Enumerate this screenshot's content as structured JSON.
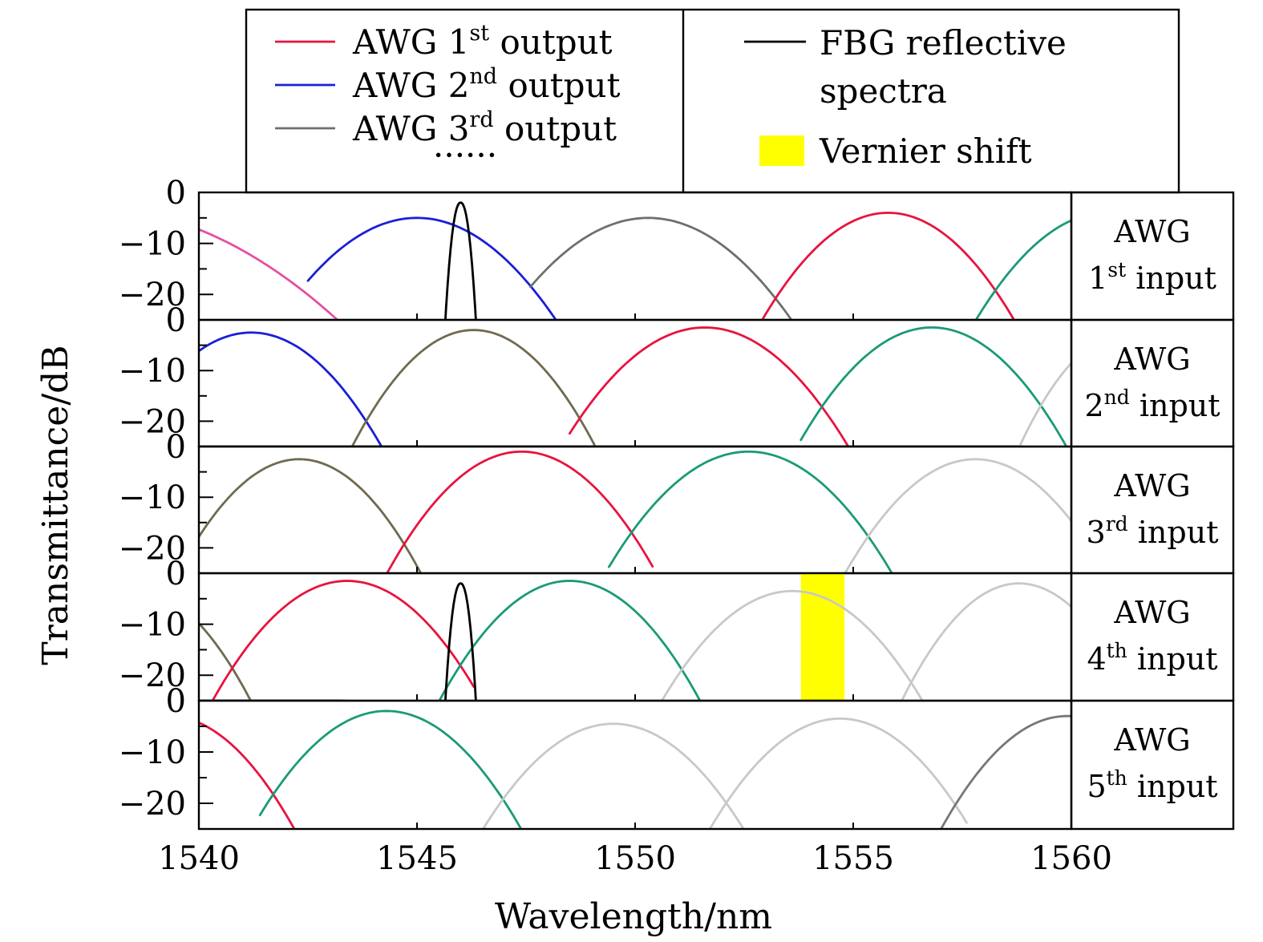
{
  "chart_data": {
    "type": "line",
    "title": "",
    "xlabel": "Wavelength/nm",
    "ylabel": "Transmittance/dB",
    "xlim": [
      1540,
      1560
    ],
    "ylim": [
      -25,
      0
    ],
    "x_ticks": [
      "1540",
      "1545",
      "1550",
      "1555",
      "1560"
    ],
    "y_ticks": [
      "0",
      "−10",
      "−20"
    ],
    "grid": false,
    "legend_position": "top",
    "colors": {
      "awg_1st_output": "#e8133f",
      "awg_2nd_output": "#1a1fd6",
      "awg_3rd_output": "#6f6f6a",
      "fbg": "#000000",
      "vernier": "#ffff00",
      "teal": "#1a9a78",
      "light_gray": "#c8c8c8",
      "olive": "#6f6a50",
      "magenta": "#e64fa0",
      "dark_gray": "#777777"
    },
    "legend": {
      "left": [
        {
          "label": "AWG ",
          "ord": "1",
          "sup": "st",
          "suffix": " output",
          "color_key": "awg_1st_output"
        },
        {
          "label": "AWG ",
          "ord": "2",
          "sup": "nd",
          "suffix": " output",
          "color_key": "awg_2nd_output"
        },
        {
          "label": "AWG ",
          "ord": "3",
          "sup": "rd",
          "suffix": " output",
          "color_key": "awg_3rd_output"
        }
      ],
      "ellipsis": "······",
      "fbg_line1": "FBG reflective",
      "fbg_line2": "spectra",
      "vernier_label": "Vernier shift"
    },
    "panels": [
      {
        "label_top": "AWG",
        "label_ord": "1",
        "label_sup": "st",
        "label_suffix": " input",
        "series": [
          {
            "color_key": "magenta",
            "center": 1537.5,
            "peak": -3,
            "xmin": 1540,
            "xmax": 1543.2
          },
          {
            "color_key": "awg_2nd_output",
            "center": 1545.0,
            "peak": -5,
            "xmin": 1542.5,
            "xmax": 1548.2
          },
          {
            "color_key": "awg_3rd_output",
            "center": 1550.3,
            "peak": -5,
            "xmin": 1547.6,
            "xmax": 1553.6
          },
          {
            "color_key": "awg_1st_output",
            "center": 1555.8,
            "peak": -4,
            "xmin": 1552.9,
            "xmax": 1558.7
          },
          {
            "color_key": "teal",
            "center": 1560.8,
            "peak": -4,
            "xmin": 1557.8,
            "xmax": 1560
          }
        ],
        "fbg": {
          "center": 1546.0,
          "peak": -2,
          "half_width": 0.35,
          "baseline": -25
        }
      },
      {
        "label_top": "AWG",
        "label_ord": "2",
        "label_sup": "nd",
        "label_suffix": " input",
        "series": [
          {
            "color_key": "awg_2nd_output",
            "center": 1541.2,
            "peak": -2.5,
            "xmin": 1540,
            "xmax": 1544.2
          },
          {
            "color_key": "olive",
            "center": 1546.3,
            "peak": -2,
            "xmin": 1543.5,
            "xmax": 1549.1
          },
          {
            "color_key": "awg_1st_output",
            "center": 1551.6,
            "peak": -1.5,
            "xmin": 1548.5,
            "xmax": 1554.9
          },
          {
            "color_key": "teal",
            "center": 1556.8,
            "peak": -1.5,
            "xmin": 1553.8,
            "xmax": 1559.9
          },
          {
            "color_key": "light_gray",
            "center": 1561.2,
            "peak": -3,
            "xmin": 1558.8,
            "xmax": 1560
          }
        ],
        "baseline": [
          [
            1540,
            -25
          ],
          [
            1558.8,
            -25
          ],
          [
            1560,
            -25.5
          ]
        ]
      },
      {
        "label_top": "AWG",
        "label_ord": "3",
        "label_sup": "rd",
        "label_suffix": " input",
        "series": [
          {
            "color_key": "olive",
            "center": 1542.3,
            "peak": -2.5,
            "xmin": 1540,
            "xmax": 1545.1
          },
          {
            "color_key": "awg_1st_output",
            "center": 1547.4,
            "peak": -1,
            "xmin": 1544.3,
            "xmax": 1550.4
          },
          {
            "color_key": "teal",
            "center": 1552.6,
            "peak": -1,
            "xmin": 1549.4,
            "xmax": 1555.9
          },
          {
            "color_key": "light_gray",
            "center": 1557.8,
            "peak": -2.5,
            "xmin": 1554.8,
            "xmax": 1560
          }
        ]
      },
      {
        "label_top": "AWG",
        "label_ord": "4",
        "label_sup": "th",
        "label_suffix": " input",
        "series": [
          {
            "color_key": "olive",
            "center": 1538.5,
            "peak": -3,
            "xmin": 1540,
            "xmax": 1541.2
          },
          {
            "color_key": "awg_1st_output",
            "center": 1543.4,
            "peak": -1.5,
            "xmin": 1540.3,
            "xmax": 1546.3
          },
          {
            "color_key": "teal",
            "center": 1548.5,
            "peak": -1.5,
            "xmin": 1545.5,
            "xmax": 1551.5
          },
          {
            "color_key": "light_gray",
            "center": 1553.6,
            "peak": -3.5,
            "xmin": 1550.6,
            "xmax": 1556.6
          },
          {
            "color_key": "light_gray",
            "center": 1558.8,
            "peak": -2,
            "xmin": 1556.1,
            "xmax": 1560
          }
        ],
        "fbg": {
          "center": 1546.0,
          "peak": -2,
          "half_width": 0.35,
          "baseline": -25
        },
        "baseline": [
          [
            1540,
            -25
          ],
          [
            1543.2,
            -25
          ],
          [
            1545.7,
            -25.5
          ]
        ],
        "vernier_shift": [
          1553.8,
          1554.8
        ]
      },
      {
        "label_top": "AWG",
        "label_ord": "5",
        "label_sup": "th",
        "label_suffix": " input",
        "series": [
          {
            "color_key": "awg_1st_output",
            "center": 1539.3,
            "peak": -3,
            "xmin": 1540,
            "xmax": 1542.2
          },
          {
            "color_key": "teal",
            "center": 1544.3,
            "peak": -2,
            "xmin": 1541.4,
            "xmax": 1547.4
          },
          {
            "color_key": "light_gray",
            "center": 1549.5,
            "peak": -4.5,
            "xmin": 1546.5,
            "xmax": 1552.5
          },
          {
            "color_key": "light_gray",
            "center": 1554.7,
            "peak": -3.5,
            "xmin": 1551.7,
            "xmax": 1557.6
          },
          {
            "color_key": "dark_gray",
            "center": 1559.9,
            "peak": -3,
            "xmin": 1557.0,
            "xmax": 1560
          }
        ]
      }
    ]
  }
}
